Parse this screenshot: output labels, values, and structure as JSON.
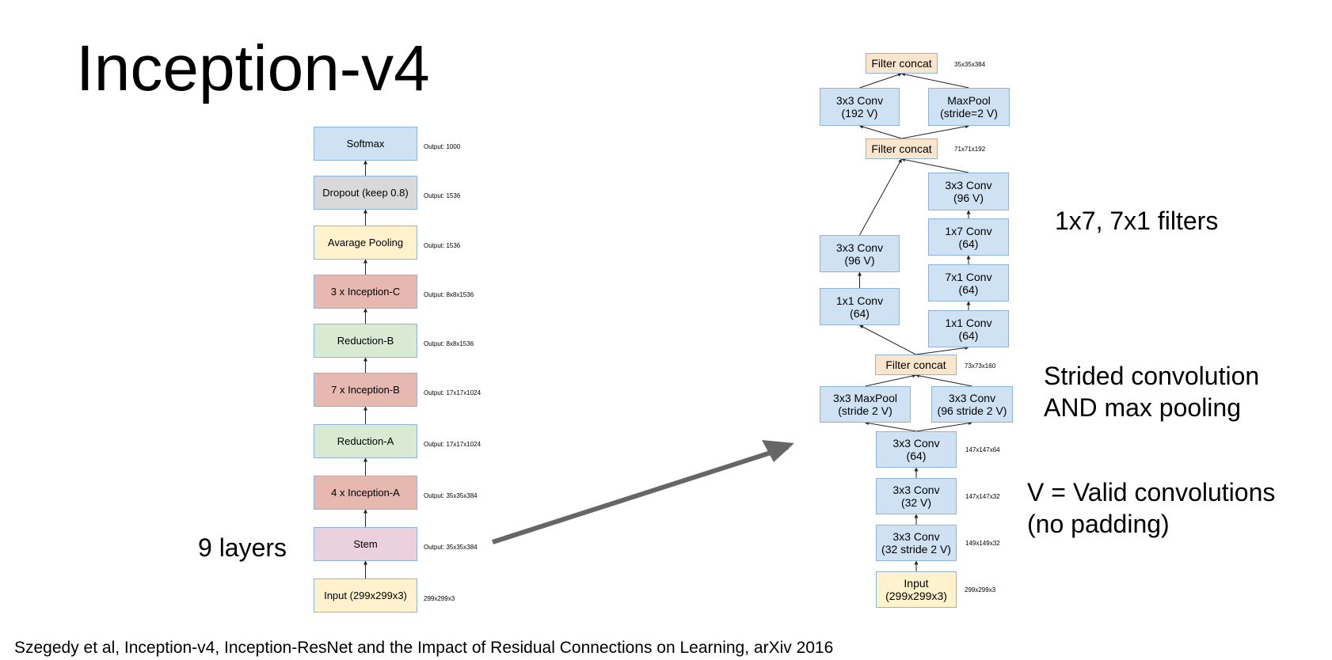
{
  "title": "Inception-v4",
  "left_diagram": {
    "layers": [
      {
        "id": "softmax",
        "label": "Softmax",
        "output": "Output: 1000",
        "color": "blue"
      },
      {
        "id": "dropout",
        "label": "Dropout (keep 0.8)",
        "output": "Output: 1536",
        "color": "gray"
      },
      {
        "id": "avgpool",
        "label": "Avarage Pooling",
        "output": "Output: 1536",
        "color": "yellow"
      },
      {
        "id": "inception-c",
        "label": "3 x Inception-C",
        "output": "Output: 8x8x1536",
        "color": "red"
      },
      {
        "id": "reduction-b",
        "label": "Reduction-B",
        "output": "Output: 8x8x1536",
        "color": "green"
      },
      {
        "id": "inception-b",
        "label": "7 x Inception-B",
        "output": "Output: 17x17x1024",
        "color": "red"
      },
      {
        "id": "reduction-a",
        "label": "Reduction-A",
        "output": "Output: 17x17x1024",
        "color": "green"
      },
      {
        "id": "inception-a",
        "label": "4 x Inception-A",
        "output": "Output: 35x35x384",
        "color": "red"
      },
      {
        "id": "stem",
        "label": "Stem",
        "output": "Output: 35x35x384",
        "color": "pink"
      },
      {
        "id": "input",
        "label": "Input (299x299x3)",
        "output": "299x299x3",
        "color": "yellow"
      }
    ]
  },
  "right_diagram": {
    "nodes": [
      {
        "id": "concat-top",
        "label": "Filter concat",
        "color": "peach"
      },
      {
        "id": "conv-192v",
        "label": "3x3 Conv\n(192 V)",
        "color": "blue"
      },
      {
        "id": "maxpool-top",
        "label": "MaxPool\n(stride=2 V)",
        "color": "blue"
      },
      {
        "id": "concat-mid",
        "label": "Filter concat",
        "color": "peach"
      },
      {
        "id": "conv-96v-right",
        "label": "3x3 Conv\n(96 V)",
        "color": "blue"
      },
      {
        "id": "conv-1x7",
        "label": "1x7 Conv\n(64)",
        "color": "blue"
      },
      {
        "id": "conv-7x1",
        "label": "7x1 Conv\n(64)",
        "color": "blue"
      },
      {
        "id": "conv-1x1-right",
        "label": "1x1 Conv\n(64)",
        "color": "blue"
      },
      {
        "id": "conv-96v-left",
        "label": "3x3 Conv\n(96 V)",
        "color": "blue"
      },
      {
        "id": "conv-1x1-left",
        "label": "1x1 Conv\n(64)",
        "color": "blue"
      },
      {
        "id": "concat-low",
        "label": "Filter concat",
        "color": "peach"
      },
      {
        "id": "maxpool-low",
        "label": "3x3 MaxPool\n(stride 2 V)",
        "color": "blue"
      },
      {
        "id": "conv-96-stride2",
        "label": "3x3 Conv\n(96 stride 2 V)",
        "color": "blue"
      },
      {
        "id": "conv-64",
        "label": "3x3 Conv\n(64)",
        "color": "blue"
      },
      {
        "id": "conv-32v",
        "label": "3x3 Conv\n(32 V)",
        "color": "blue"
      },
      {
        "id": "conv-32-stride2",
        "label": "3x3 Conv\n(32 stride 2 V)",
        "color": "blue"
      },
      {
        "id": "input-right",
        "label": "Input\n(299x299x3)",
        "color": "yellow"
      }
    ],
    "sizes": [
      {
        "id": "concat-top",
        "text": "35x35x384"
      },
      {
        "id": "concat-mid",
        "text": "71x71x192"
      },
      {
        "id": "concat-low",
        "text": "73x73x160"
      },
      {
        "id": "conv-64",
        "text": "147x147x64"
      },
      {
        "id": "conv-32v",
        "text": "147x147x32"
      },
      {
        "id": "conv-32-stride2",
        "text": "149x149x32"
      },
      {
        "id": "input-right",
        "text": "299x299x3"
      }
    ]
  },
  "annotations": {
    "layers_label": "9 layers",
    "filters": "1x7, 7x1 filters",
    "strided": "Strided convolution\nAND max pooling",
    "valid": "V = Valid convolutions\n(no padding)"
  },
  "citation": "Szegedy et al, Inception-v4, Inception-ResNet and the Impact of Residual Connections on Learning, arXiv 2016",
  "colors": {
    "blue": "#cfe2f3",
    "gray": "#d9d9d9",
    "yellow": "#fff2cc",
    "red": "#e6b8af",
    "green": "#d9ead3",
    "pink": "#ead1dc",
    "peach": "#fce5cd",
    "box_border": "#8fb3da",
    "arrow": "#666666"
  }
}
